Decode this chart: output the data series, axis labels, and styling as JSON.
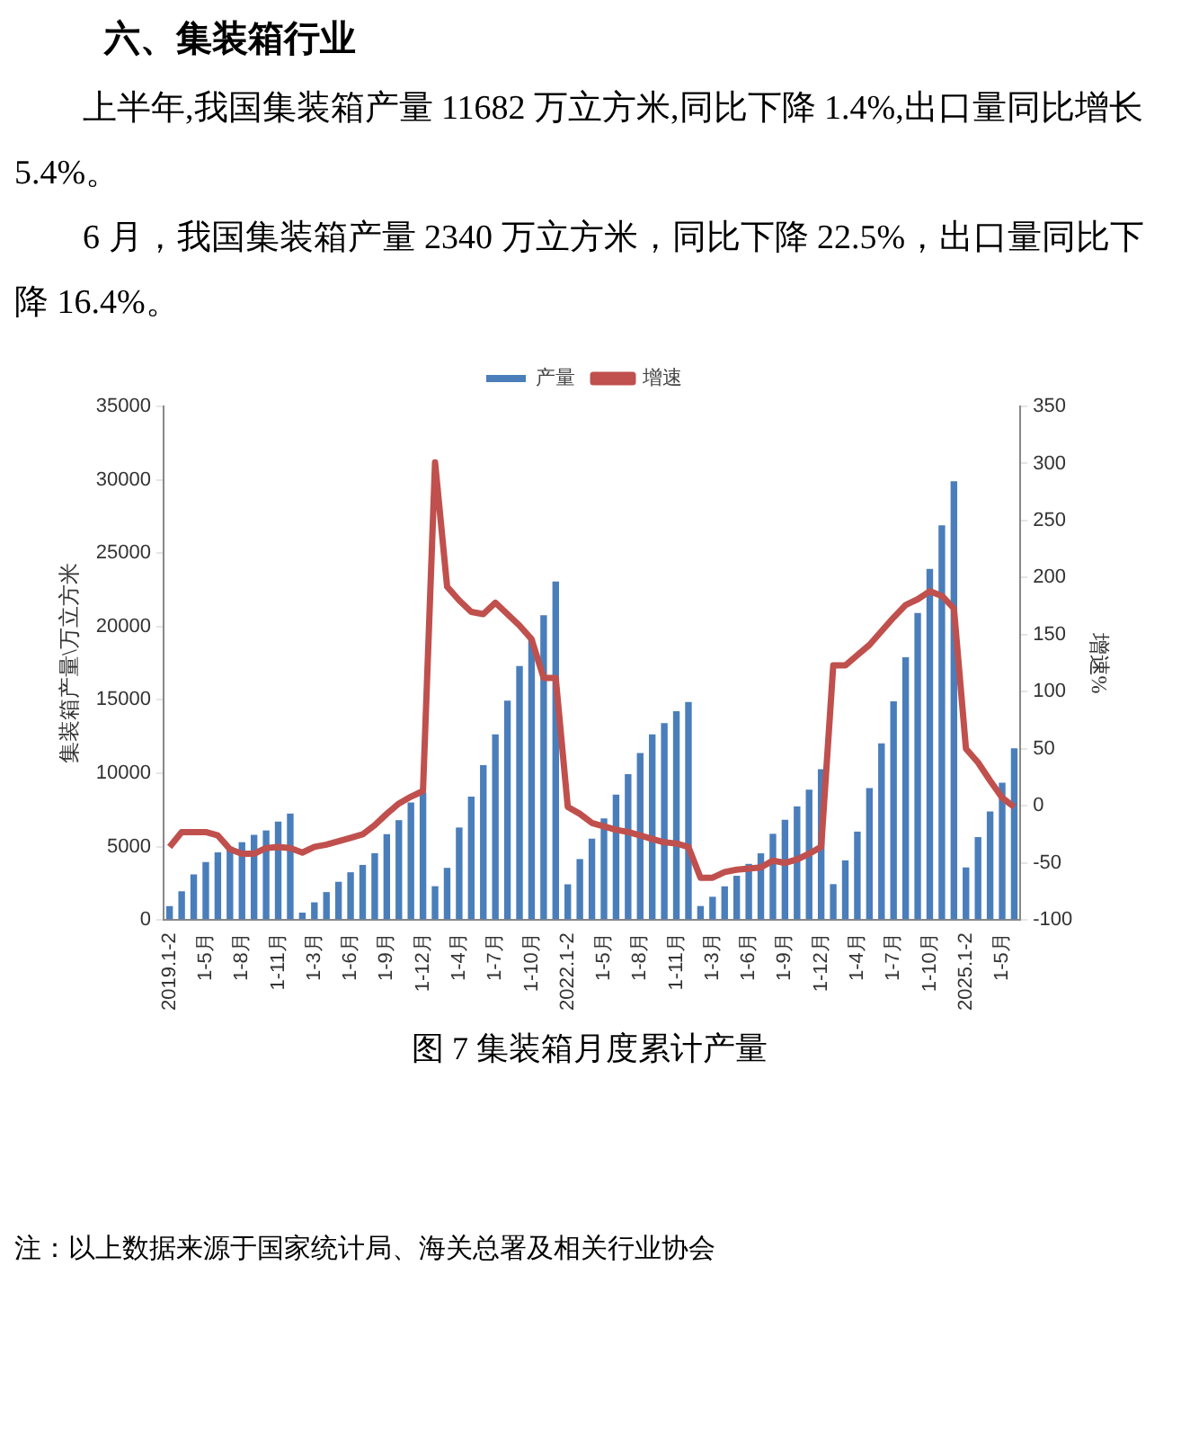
{
  "chart_data": {
    "type": "bar",
    "title": "六、集装箱行业",
    "annotations": [
      "上半年,我国集装箱产量 11682 万立方米,同比下降 1.4%,出口量同比增长 5.4%。",
      "6 月，我国集装箱产量 2340 万立方米，同比下降 22.5%，出口量同比下降 16.4%。",
      "图 7  集装箱月度累计产量",
      "注：以上数据来源于国家统计局、海关总署及相关行业协会"
    ],
    "categories": [
      "2019.1-2",
      null,
      null,
      "1-5月",
      null,
      null,
      "1-8月",
      null,
      null,
      "1-11月",
      null,
      null,
      "1-3月",
      null,
      null,
      "1-6月",
      null,
      null,
      "1-9月",
      null,
      null,
      "1-12月",
      null,
      null,
      "1-4月",
      null,
      null,
      "1-7月",
      null,
      null,
      "1-10月",
      null,
      null,
      "2022.1-2",
      null,
      null,
      "1-5月",
      null,
      null,
      "1-8月",
      null,
      null,
      "1-11月",
      null,
      null,
      "1-3月",
      null,
      null,
      "1-6月",
      null,
      null,
      "1-9月",
      null,
      null,
      "1-12月",
      null,
      null,
      "1-4月",
      null,
      null,
      "1-7月",
      null,
      null,
      "1-10月",
      null,
      null,
      "2025.1-2",
      null,
      null,
      "1-5月",
      null
    ],
    "series": [
      {
        "name": "产量",
        "color": "#4a7ebb",
        "values": [
          950,
          1950,
          3100,
          3950,
          4600,
          5000,
          5300,
          5800,
          6100,
          6700,
          7250,
          500,
          1200,
          1900,
          2600,
          3250,
          3750,
          4550,
          5850,
          6800,
          8000,
          8700,
          2300,
          3550,
          6300,
          8400,
          10550,
          12650,
          14950,
          17300,
          19150,
          20770,
          23060,
          2430,
          4150,
          5540,
          6920,
          8550,
          9930,
          11370,
          12650,
          13420,
          14230,
          14850,
          950,
          1580,
          2290,
          3010,
          3820,
          4540,
          5870,
          6830,
          7740,
          8880,
          10270,
          2440,
          4060,
          6020,
          8980,
          12030,
          14900,
          17910,
          20920,
          23930,
          26890,
          29900,
          3580,
          5640,
          7400,
          9360,
          11700
        ]
      },
      {
        "name": "增速",
        "type": "line",
        "axis": "y2",
        "color": "#c0504d",
        "values": [
          -36,
          -23,
          -23,
          -23,
          -26,
          -38,
          -42,
          -42,
          -37,
          -36,
          -37,
          -41,
          -36,
          -34,
          -31,
          -28,
          -25,
          -17,
          -7,
          2,
          8,
          13,
          301,
          192,
          180,
          170,
          168,
          178,
          168,
          158,
          146,
          112,
          112,
          -1,
          -7,
          -15,
          -18,
          -21,
          -23,
          -26,
          -29,
          -32,
          -33,
          -36,
          -63,
          -63,
          -58,
          -56,
          -55,
          -54,
          -48,
          -50,
          -47,
          -42,
          -36,
          123,
          123,
          132,
          141,
          153,
          165,
          176,
          181,
          188,
          184,
          173,
          50,
          38,
          22,
          7,
          -1
        ]
      }
    ],
    "ylabel": "集装箱产量\\万立方米",
    "y2label": "增速%",
    "ylim": [
      0,
      35000
    ],
    "yticks": [
      0,
      5000,
      10000,
      15000,
      20000,
      25000,
      30000,
      35000
    ],
    "y2lim": [
      -100,
      350
    ],
    "y2ticks": [
      -100,
      -50,
      0,
      50,
      100,
      150,
      200,
      250,
      300,
      350
    ],
    "legend": "top",
    "grid": false,
    "marker": "none"
  }
}
